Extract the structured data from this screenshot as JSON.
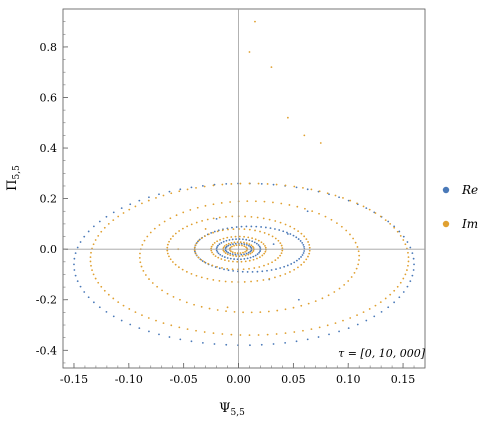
{
  "chart_data": {
    "type": "scatter",
    "xlabel": "Ψ",
    "xlabel_sub": "5,5",
    "ylabel": "Π",
    "ylabel_sub": "5,5",
    "xlim": [
      -0.16,
      0.17
    ],
    "ylim": [
      -0.47,
      0.95
    ],
    "xticks": [
      -0.15,
      -0.1,
      -0.05,
      0.0,
      0.05,
      0.1,
      0.15
    ],
    "xtick_labels": [
      "-0.15",
      "-0.10",
      "-0.05",
      "0.00",
      "0.05",
      "0.10",
      "0.15"
    ],
    "yticks": [
      -0.4,
      -0.2,
      0.0,
      0.2,
      0.4,
      0.6,
      0.8
    ],
    "ytick_labels": [
      "-0.4",
      "-0.2",
      "0.0",
      "0.2",
      "0.4",
      "0.6",
      "0.8"
    ],
    "grid": false,
    "annotation": "τ = [0, 10, 000]",
    "legend_position": "right",
    "series": [
      {
        "name": "Re",
        "color": "#4a79b8",
        "orbits": [
          {
            "cx": 0.005,
            "cy": -0.06,
            "rx": 0.155,
            "ry": 0.32,
            "n": 90
          },
          {
            "cx": 0.01,
            "cy": 0.0,
            "rx": 0.05,
            "ry": 0.09,
            "n": 70
          },
          {
            "cx": 0.0,
            "cy": 0.0,
            "rx": 0.02,
            "ry": 0.04,
            "n": 40
          },
          {
            "cx": 0.0,
            "cy": 0.0,
            "rx": 0.012,
            "ry": 0.022,
            "n": 28
          }
        ],
        "extra_points": [
          [
            0.063,
            0.15
          ],
          [
            0.045,
            0.06
          ],
          [
            0.032,
            0.02
          ],
          [
            0.028,
            -0.12
          ],
          [
            0.055,
            -0.2
          ],
          [
            -0.02,
            0.12
          ]
        ]
      },
      {
        "name": "Im",
        "color": "#e0a030",
        "orbits": [
          {
            "cx": 0.01,
            "cy": -0.04,
            "rx": 0.145,
            "ry": 0.3,
            "n": 110
          },
          {
            "cx": 0.01,
            "cy": -0.03,
            "rx": 0.1,
            "ry": 0.22,
            "n": 80
          },
          {
            "cx": 0.0,
            "cy": 0.0,
            "rx": 0.065,
            "ry": 0.13,
            "n": 70
          },
          {
            "cx": 0.0,
            "cy": 0.0,
            "rx": 0.04,
            "ry": 0.08,
            "n": 50
          },
          {
            "cx": 0.0,
            "cy": 0.0,
            "rx": 0.025,
            "ry": 0.05,
            "n": 40
          },
          {
            "cx": 0.0,
            "cy": 0.0,
            "rx": 0.014,
            "ry": 0.028,
            "n": 30
          },
          {
            "cx": 0.0,
            "cy": 0.0,
            "rx": 0.008,
            "ry": 0.016,
            "n": 20
          }
        ],
        "extra_points": [
          [
            0.015,
            0.9
          ],
          [
            0.01,
            0.78
          ],
          [
            0.03,
            0.72
          ],
          [
            0.06,
            0.45
          ],
          [
            0.045,
            0.52
          ],
          [
            0.075,
            0.42
          ],
          [
            -0.03,
            0.08
          ],
          [
            -0.055,
            0.0
          ],
          [
            -0.01,
            -0.23
          ]
        ]
      }
    ]
  }
}
